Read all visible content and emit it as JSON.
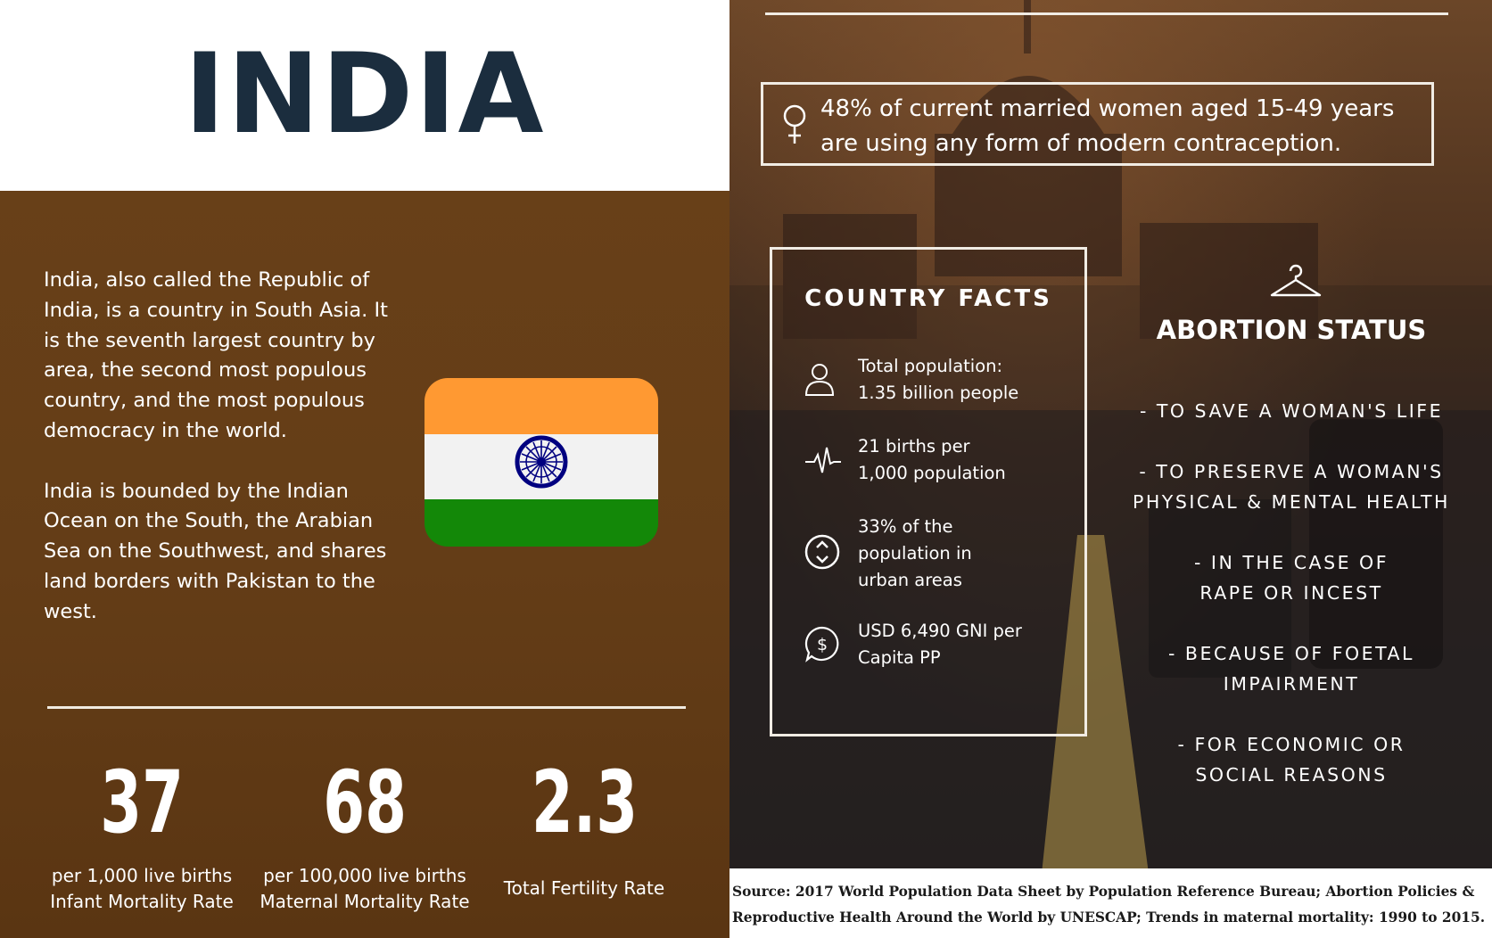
{
  "title": "INDIA",
  "intro": [
    "India, also called the Republic of India, is a country in South Asia. It is the seventh largest country by area, the second most populous country, and the most populous democracy in the world.",
    "India is bounded by the Indian Ocean on the South, the Arabian Sea on the Southwest, and shares land borders with Pakistan to the west."
  ],
  "flag": {
    "icon": "india-flag-icon",
    "saffron": "#ff9932",
    "white": "#f2f2f2",
    "green": "#138808",
    "chakra": "#000080"
  },
  "stats": [
    {
      "value": "37",
      "caption_line1": "per 1,000 live births",
      "caption_line2": "Infant Mortality Rate"
    },
    {
      "value": "68",
      "caption_line1": "per 100,000 live births",
      "caption_line2": "Maternal Mortality Rate"
    },
    {
      "value": "2.3",
      "caption_line1": "Total Fertility Rate",
      "caption_line2": ""
    }
  ],
  "contraception": {
    "icon": "venus-icon",
    "text": "48% of current married women aged 15-49 years are using any form of modern contraception."
  },
  "country_facts": {
    "title": "COUNTRY FACTS",
    "items": [
      {
        "icon": "person-icon",
        "line1": "Total population:",
        "line2": "1.35 billion people",
        "line3": ""
      },
      {
        "icon": "heartbeat-icon",
        "line1": "21 births per",
        "line2": "1,000 population",
        "line3": ""
      },
      {
        "icon": "urban-arrows-icon",
        "line1": "33% of the",
        "line2": "population in",
        "line3": "urban areas"
      },
      {
        "icon": "dollar-chat-icon",
        "line1": "USD 6,490 GNI per",
        "line2": "Capita PP",
        "line3": ""
      }
    ]
  },
  "abortion_status": {
    "icon": "hanger-icon",
    "title": "ABORTION STATUS",
    "items": [
      [
        "- TO SAVE A WOMAN'S LIFE"
      ],
      [
        "- TO PRESERVE A WOMAN'S",
        "PHYSICAL & MENTAL HEALTH"
      ],
      [
        "- IN THE CASE OF",
        "RAPE OR INCEST"
      ],
      [
        "- BECAUSE OF FOETAL",
        "IMPAIRMENT"
      ],
      [
        "- FOR ECONOMIC OR",
        "SOCIAL REASONS"
      ]
    ]
  },
  "source": "Source: 2017 World Population Data Sheet by Population Reference Bureau; Abortion Policies & Reproductive Health Around the World by UNESCAP; Trends in maternal mortality: 1990 to 2015."
}
